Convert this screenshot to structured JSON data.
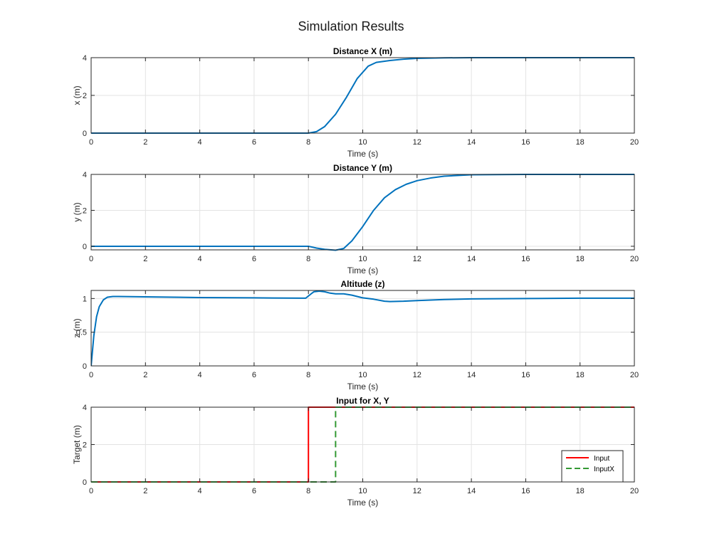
{
  "figure": {
    "title": "Simulation Results"
  },
  "chart_data": [
    {
      "type": "line",
      "title": "Distance X (m)",
      "xlabel": "Time (s)",
      "ylabel": "x (m)",
      "xlim": [
        0,
        20
      ],
      "ylim": [
        0,
        4
      ],
      "xticks": [
        0,
        2,
        4,
        6,
        8,
        10,
        12,
        14,
        16,
        18,
        20
      ],
      "yticks": [
        0,
        2,
        4
      ],
      "grid": true,
      "series": [
        {
          "color": "#0072BD",
          "x": [
            0,
            8.0,
            8.3,
            8.6,
            9.0,
            9.4,
            9.8,
            10.2,
            10.5,
            11.0,
            11.5,
            12.0,
            13.0,
            14.0,
            16.0,
            20.0
          ],
          "y": [
            0,
            0,
            0.08,
            0.35,
            1.0,
            1.9,
            2.9,
            3.55,
            3.75,
            3.85,
            3.92,
            3.96,
            3.99,
            4.0,
            4.0,
            4.0
          ]
        }
      ]
    },
    {
      "type": "line",
      "title": "Distance Y (m)",
      "xlabel": "Time (s)",
      "ylabel": "y (m)",
      "xlim": [
        0,
        20
      ],
      "ylim": [
        -0.2,
        4
      ],
      "xticks": [
        0,
        2,
        4,
        6,
        8,
        10,
        12,
        14,
        16,
        18,
        20
      ],
      "yticks": [
        0,
        2,
        4
      ],
      "grid": true,
      "series": [
        {
          "color": "#0072BD",
          "x": [
            0,
            8.0,
            8.3,
            8.6,
            9.0,
            9.3,
            9.6,
            10.0,
            10.4,
            10.8,
            11.2,
            11.6,
            12.0,
            12.5,
            13.0,
            14.0,
            16.0,
            20.0
          ],
          "y": [
            0,
            0,
            -0.1,
            -0.17,
            -0.22,
            -0.12,
            0.3,
            1.1,
            2.0,
            2.7,
            3.15,
            3.45,
            3.65,
            3.8,
            3.9,
            3.98,
            4.0,
            4.0
          ]
        }
      ]
    },
    {
      "type": "line",
      "title": "Altitude (z)",
      "xlabel": "Time (s)",
      "ylabel": "z (m)",
      "xlim": [
        0,
        20
      ],
      "ylim": [
        0,
        1.12
      ],
      "xticks": [
        0,
        2,
        4,
        6,
        8,
        10,
        12,
        14,
        16,
        18,
        20
      ],
      "yticks": [
        0,
        0.5,
        1
      ],
      "ytick_labels": [
        "0",
        "0.5",
        "1"
      ],
      "grid": true,
      "series": [
        {
          "color": "#0072BD",
          "x": [
            0,
            0.1,
            0.2,
            0.3,
            0.45,
            0.6,
            0.8,
            1.0,
            2.0,
            4.0,
            6.0,
            7.9,
            8.1,
            8.2,
            8.4,
            8.6,
            8.8,
            9.0,
            9.3,
            9.6,
            10.0,
            10.4,
            10.8,
            11.0,
            11.5,
            12.0,
            13.0,
            14.0,
            16.0,
            18.0,
            20.0
          ],
          "y": [
            0,
            0.45,
            0.73,
            0.88,
            0.98,
            1.02,
            1.03,
            1.03,
            1.025,
            1.015,
            1.01,
            1.005,
            1.07,
            1.1,
            1.11,
            1.1,
            1.08,
            1.07,
            1.07,
            1.05,
            1.01,
            0.99,
            0.96,
            0.955,
            0.96,
            0.97,
            0.985,
            0.995,
            1.0,
            1.005,
            1.005
          ]
        }
      ]
    },
    {
      "type": "line",
      "title": "Input for X, Y",
      "xlabel": "Time (s)",
      "ylabel": "Target (m)",
      "xlim": [
        0,
        20
      ],
      "ylim": [
        0,
        4
      ],
      "xticks": [
        0,
        2,
        4,
        6,
        8,
        10,
        12,
        14,
        16,
        18,
        20
      ],
      "yticks": [
        0,
        2,
        4
      ],
      "grid": true,
      "legend": "bottom-right",
      "series": [
        {
          "name": "Input",
          "color": "#FF0000",
          "style": "solid",
          "x": [
            0,
            8.0,
            8.0,
            20
          ],
          "y": [
            0,
            0,
            4,
            4
          ]
        },
        {
          "name": "InputX",
          "color": "#339933",
          "style": "dashed",
          "x": [
            0,
            9.0,
            9.0,
            20
          ],
          "y": [
            0,
            0,
            4,
            4
          ]
        }
      ]
    }
  ]
}
